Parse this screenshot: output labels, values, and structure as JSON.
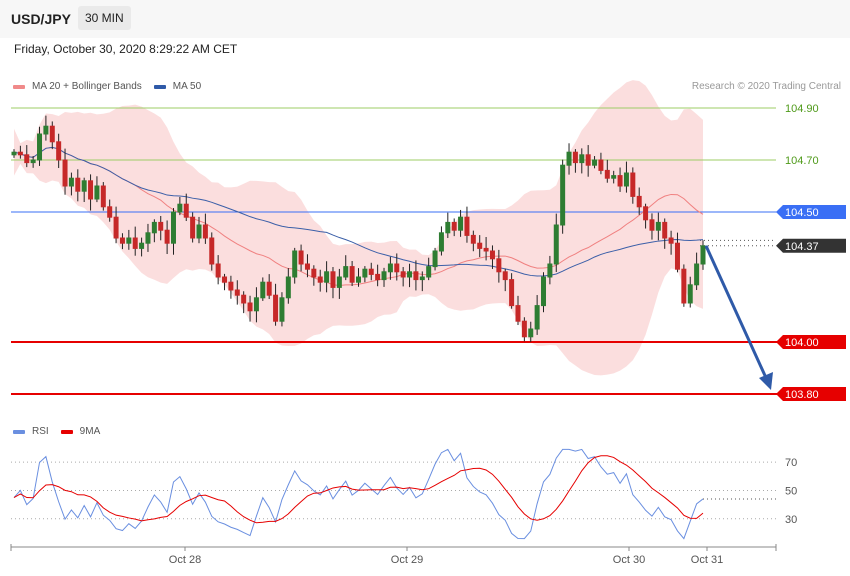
{
  "header": {
    "symbol": "USD/JPY",
    "timeframe": "30 MIN"
  },
  "timestamp": "Friday, October 30, 2020 8:29:22 AM CET",
  "credit": "Research © 2020 Trading Central",
  "colors": {
    "bollinger": "#f4a0a0",
    "ma20": "#f08080",
    "ma50": "#3b5fa8",
    "resistance_green": "#9ccc65",
    "pivot_blue": "#3a6ff5",
    "support_red": "#e60000",
    "candle_up": "#2e7d32",
    "candle_down": "#c62828",
    "arrow": "#2f5aa8",
    "rsi": "#6a8fe0",
    "rsi_ma": "#e60000"
  },
  "main_legend": [
    {
      "label": "MA 20 + Bollinger Bands",
      "color": "#f08a8a"
    },
    {
      "label": "MA 50",
      "color": "#2f5aa8"
    }
  ],
  "rsi_legend": [
    {
      "label": "RSI",
      "color": "#6a8fe0"
    },
    {
      "label": "9MA",
      "color": "#e60000"
    }
  ],
  "chart_data": [
    {
      "type": "candlestick",
      "ylim": [
        103.7,
        104.95
      ],
      "x_labels": [
        "Oct 28",
        "Oct 29",
        "Oct 30",
        "Oct 31"
      ],
      "levels": [
        {
          "label": "104.90",
          "value": 104.9,
          "kind": "resistance"
        },
        {
          "label": "104.70",
          "value": 104.7,
          "kind": "resistance"
        },
        {
          "label": "104.50",
          "value": 104.5,
          "kind": "pivot"
        },
        {
          "label": "104.37",
          "value": 104.37,
          "kind": "last"
        },
        {
          "label": "104.00",
          "value": 104.0,
          "kind": "support"
        },
        {
          "label": "103.80",
          "value": 103.8,
          "kind": "target"
        }
      ],
      "close": [
        104.73,
        104.72,
        104.69,
        104.7,
        104.8,
        104.83,
        104.77,
        104.7,
        104.6,
        104.63,
        104.58,
        104.62,
        104.55,
        104.6,
        104.52,
        104.48,
        104.4,
        104.38,
        104.4,
        104.36,
        104.38,
        104.42,
        104.46,
        104.43,
        104.38,
        104.5,
        104.53,
        104.48,
        104.4,
        104.45,
        104.4,
        104.3,
        104.25,
        104.23,
        104.2,
        104.18,
        104.15,
        104.12,
        104.17,
        104.23,
        104.18,
        104.08,
        104.17,
        104.25,
        104.35,
        104.3,
        104.28,
        104.25,
        104.23,
        104.27,
        104.21,
        104.25,
        104.29,
        104.23,
        104.25,
        104.28,
        104.26,
        104.24,
        104.27,
        104.3,
        104.27,
        104.25,
        104.27,
        104.24,
        104.25,
        104.29,
        104.35,
        104.42,
        104.46,
        104.43,
        104.48,
        104.41,
        104.38,
        104.36,
        104.35,
        104.32,
        104.27,
        104.24,
        104.14,
        104.08,
        104.02,
        104.05,
        104.14,
        104.25,
        104.3,
        104.45,
        104.68,
        104.73,
        104.69,
        104.72,
        104.68,
        104.7,
        104.66,
        104.63,
        104.64,
        104.6,
        104.65,
        104.56,
        104.52,
        104.47,
        104.43,
        104.46,
        104.4,
        104.38,
        104.28,
        104.15,
        104.22,
        104.3,
        104.37
      ],
      "open_first": 104.72,
      "ma20_last": 104.46,
      "ma50_last": 104.44,
      "rsi_levels": [
        70,
        50,
        30
      ],
      "rsi_ylim": [
        15,
        80
      ],
      "rsi_last": 44,
      "rsi_ma_last": 34
    }
  ]
}
